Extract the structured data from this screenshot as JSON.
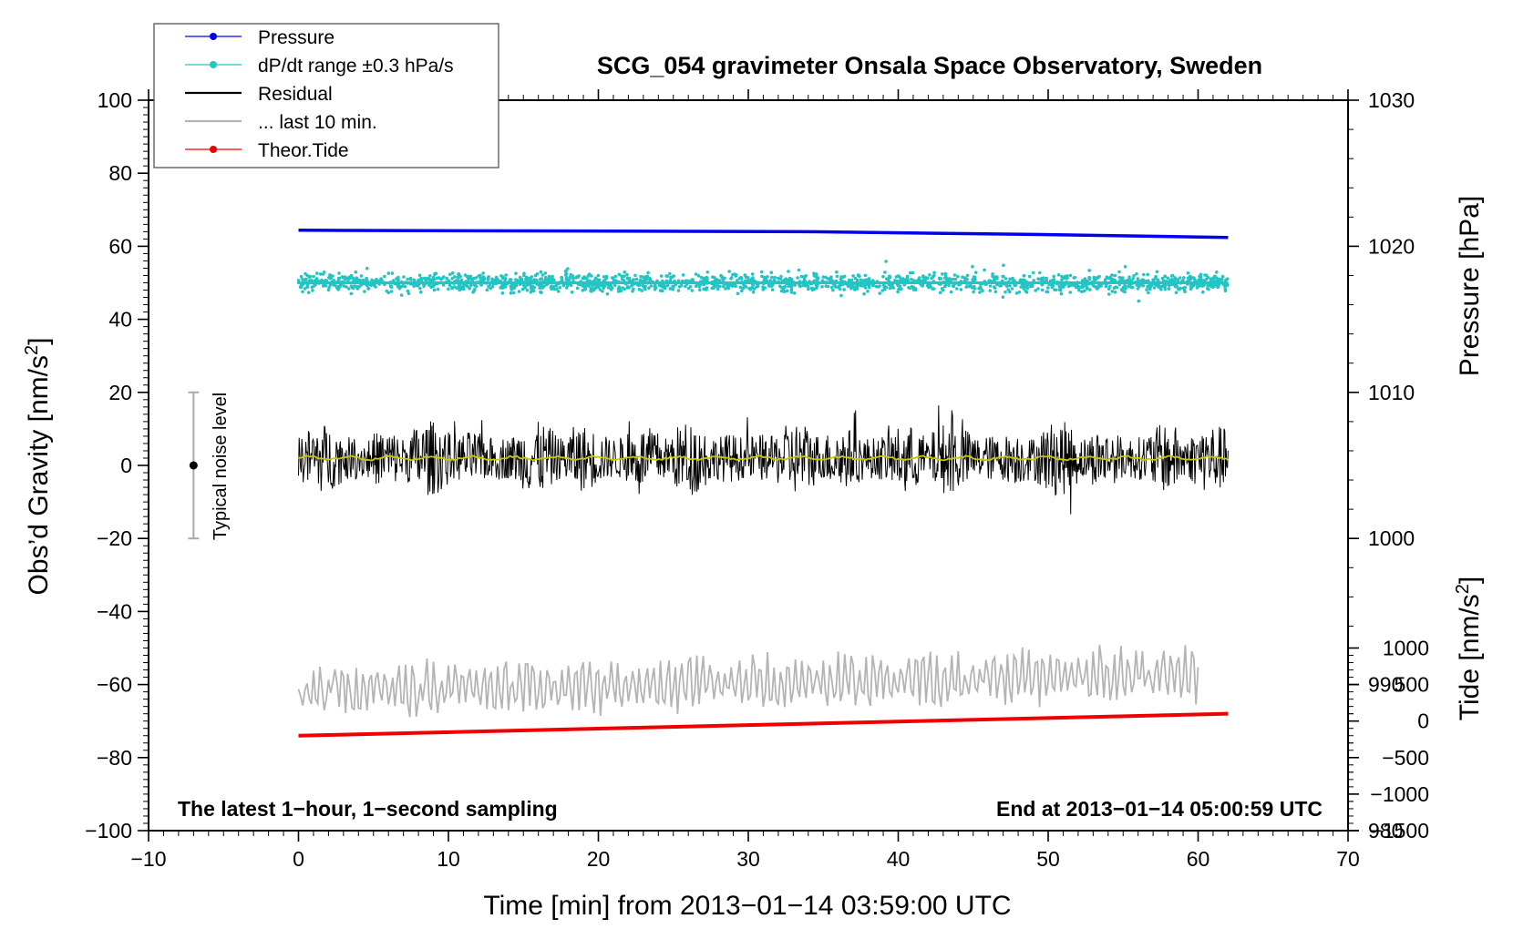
{
  "chart_data": {
    "type": "line",
    "title": "SCG_054 gravimeter Onsala Space Observatory, Sweden",
    "xlabel": "Time [min] from 2013−01−14 03:59:00 UTC",
    "ylabel_left": "Obs’d Gravity [nm/s",
    "ylabel_left_sup": "2",
    "ylabel_left_end": "]",
    "ylabel_right_top": "Pressure [hPa]",
    "ylabel_right_bottom": "Tide [nm/s",
    "ylabel_right_bottom_sup": "2",
    "ylabel_right_bottom_end": "]",
    "xlim": [
      -10,
      70
    ],
    "ylim": [
      -100,
      100
    ],
    "pressure_axis": {
      "range": [
        980,
        1030
      ],
      "ticks": [
        980,
        990,
        1000,
        1010,
        1020,
        1030
      ]
    },
    "tide_axis": {
      "range": [
        -1500,
        1000
      ],
      "ticks": [
        -1500,
        -1000,
        -500,
        0,
        500,
        1000
      ]
    },
    "x_ticks": [
      "−10",
      "0",
      "10",
      "20",
      "30",
      "40",
      "50",
      "60",
      "70"
    ],
    "y_ticks": [
      "−100",
      "−80",
      "−60",
      "−40",
      "−20",
      "0",
      "20",
      "40",
      "60",
      "80",
      "100"
    ],
    "pressure_tick_labels": [
      "980",
      "990",
      "1000",
      "1010",
      "1020",
      "1030"
    ],
    "tide_tick_labels": [
      "−1500",
      "−1000",
      "−500",
      "0",
      "500",
      "1000"
    ],
    "legend": [
      {
        "label": "Pressure",
        "color": "#0000ee",
        "marker": "dot"
      },
      {
        "label": "dP/dt range ±0.3 hPa/s",
        "color": "#22c4c4",
        "marker": "dot"
      },
      {
        "label": "Residual",
        "color": "#000000",
        "marker": "line"
      },
      {
        "label": "... last 10 min.",
        "color": "#b4b4b4",
        "marker": "line"
      },
      {
        "label": "Theor.Tide",
        "color": "#ee0000",
        "marker": "dot"
      }
    ],
    "series": [
      {
        "name": "Pressure",
        "axis": "pressure_hPa",
        "color": "#0000ee",
        "x": [
          0,
          34,
          50,
          62
        ],
        "values": [
          1021.1,
          1021.0,
          1020.8,
          1020.6
        ]
      },
      {
        "name": "dP/dt range ±0.3 hPa/s",
        "axis": "gravity",
        "color": "#22c4c4",
        "x": [
          0,
          62
        ],
        "values": [
          50,
          50
        ],
        "spread": 1.5
      },
      {
        "name": "Residual",
        "axis": "gravity",
        "color": "#000000",
        "x": [
          0,
          62
        ],
        "values": [
          2,
          2
        ],
        "spread": 8
      },
      {
        "name": "Residual running mean",
        "axis": "gravity",
        "color": "#c8c800",
        "x": [
          0,
          62
        ],
        "values": [
          2,
          2
        ]
      },
      {
        "name": "Theor.Tide",
        "axis": "tide_nm_s2",
        "color": "#ee0000",
        "x": [
          0,
          62
        ],
        "values": [
          -200,
          100
        ]
      },
      {
        "name": "... last 10 min.",
        "axis": "gravity",
        "color": "#b4b4b4",
        "x": [
          0,
          60
        ],
        "values": [
          -62,
          -57
        ],
        "spread": 7
      }
    ],
    "noise_bar": {
      "x": -7,
      "center": 0,
      "low": -20,
      "high": 20,
      "label": "Typical noise level"
    },
    "annotations": {
      "left": "The latest 1−hour, 1−second sampling",
      "right": "End at 2013−01−14 05:00:59 UTC"
    }
  }
}
